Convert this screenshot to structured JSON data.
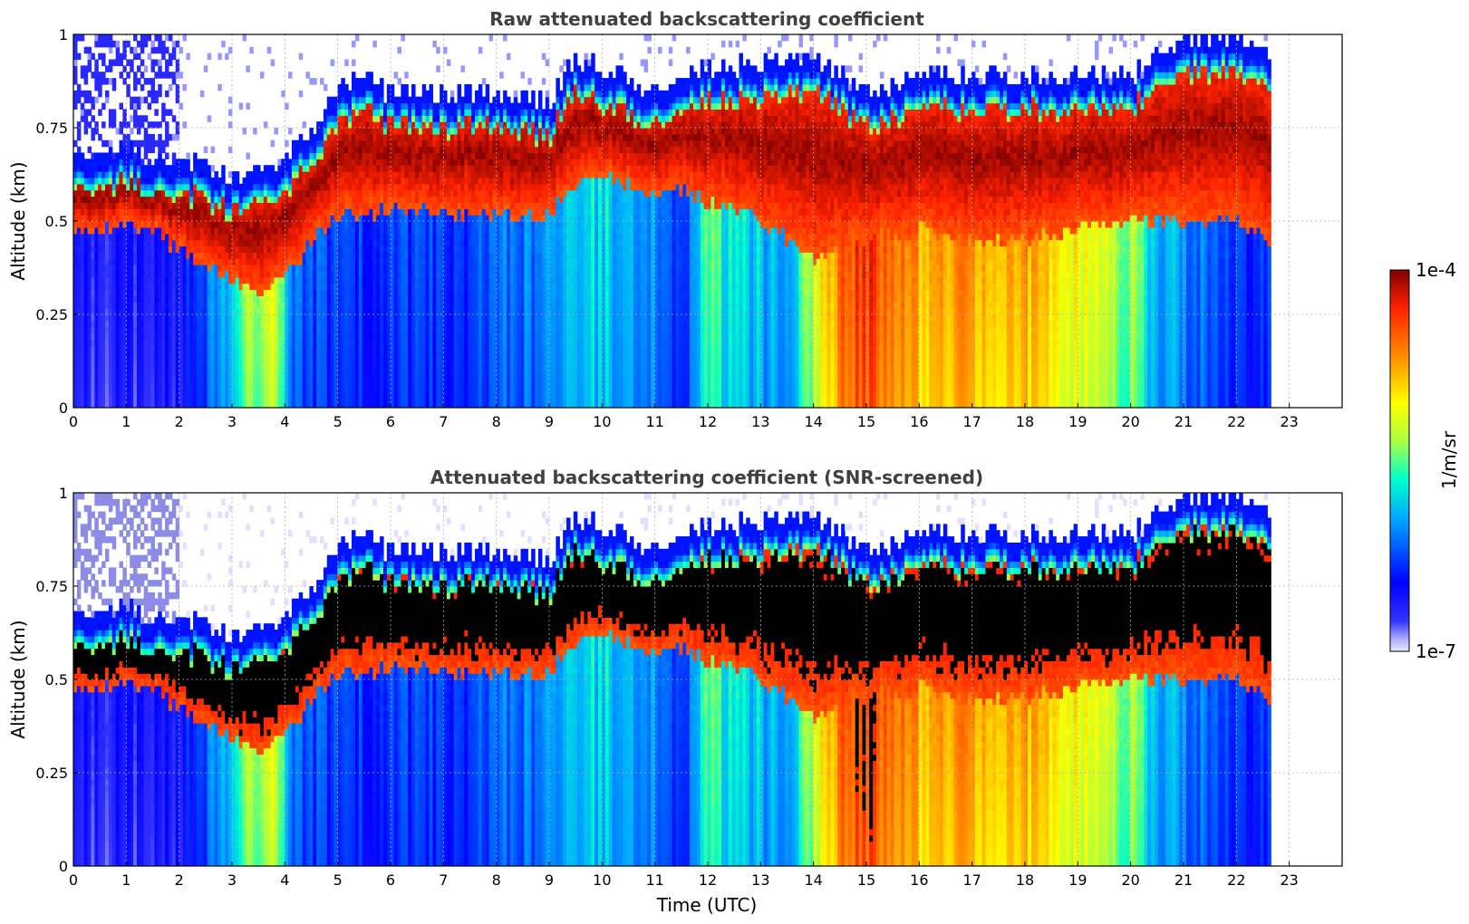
{
  "chart_data": [
    {
      "type": "heatmap",
      "title": "Raw attenuated backscattering coefficient",
      "xlabel": "",
      "ylabel": "Altitude (km)",
      "xlim": [
        0,
        24
      ],
      "ylim": [
        0,
        1
      ],
      "x_ticks": [
        "0",
        "1",
        "2",
        "3",
        "4",
        "5",
        "6",
        "7",
        "8",
        "9",
        "10",
        "11",
        "12",
        "13",
        "14",
        "15",
        "16",
        "17",
        "18",
        "19",
        "20",
        "21",
        "22",
        "23"
      ],
      "y_ticks": [
        "0",
        "0.25",
        "0.5",
        "0.75",
        "1"
      ],
      "grid": true,
      "colormap": "jet",
      "colorbar_range": [
        "1e-7",
        "1e-4"
      ],
      "colorbar_label": "1/m/sr",
      "data_extent_x": [
        0,
        22.65
      ],
      "layer_top_km": [
        [
          0,
          0.63
        ],
        [
          1,
          0.65
        ],
        [
          1.5,
          0.63
        ],
        [
          2,
          0.63
        ],
        [
          2.5,
          0.6
        ],
        [
          3,
          0.57
        ],
        [
          3.5,
          0.58
        ],
        [
          4,
          0.63
        ],
        [
          4.5,
          0.7
        ],
        [
          5,
          0.8
        ],
        [
          5.5,
          0.85
        ],
        [
          6,
          0.8
        ],
        [
          7,
          0.8
        ],
        [
          8,
          0.8
        ],
        [
          9,
          0.78
        ],
        [
          9.5,
          0.9
        ],
        [
          10,
          0.87
        ],
        [
          11,
          0.8
        ],
        [
          11.5,
          0.87
        ],
        [
          12,
          0.87
        ],
        [
          13,
          0.88
        ],
        [
          14,
          0.9
        ],
        [
          15,
          0.8
        ],
        [
          16,
          0.85
        ],
        [
          17,
          0.85
        ],
        [
          18,
          0.85
        ],
        [
          19,
          0.85
        ],
        [
          20,
          0.85
        ],
        [
          21,
          0.95
        ],
        [
          22,
          0.95
        ],
        [
          22.65,
          0.9
        ]
      ],
      "layer_bottom_km": [
        [
          0,
          0.48
        ],
        [
          1,
          0.48
        ],
        [
          1.5,
          0.48
        ],
        [
          2,
          0.42
        ],
        [
          2.5,
          0.38
        ],
        [
          3,
          0.35
        ],
        [
          3.5,
          0.3
        ],
        [
          4,
          0.35
        ],
        [
          4.5,
          0.45
        ],
        [
          5,
          0.52
        ],
        [
          6,
          0.53
        ],
        [
          7,
          0.52
        ],
        [
          8,
          0.52
        ],
        [
          9,
          0.52
        ],
        [
          9.5,
          0.6
        ],
        [
          10,
          0.62
        ],
        [
          11,
          0.58
        ],
        [
          11.5,
          0.58
        ],
        [
          12,
          0.55
        ],
        [
          13,
          0.5
        ],
        [
          14,
          0.4
        ],
        [
          15,
          0.45
        ],
        [
          16,
          0.48
        ],
        [
          17,
          0.45
        ],
        [
          18,
          0.45
        ],
        [
          19,
          0.48
        ],
        [
          20,
          0.5
        ],
        [
          21,
          0.5
        ],
        [
          22,
          0.5
        ],
        [
          22.65,
          0.45
        ]
      ],
      "surface_intensity": [
        [
          0,
          0.1
        ],
        [
          2,
          0.12
        ],
        [
          2.7,
          0.3
        ],
        [
          3.3,
          0.5
        ],
        [
          3.8,
          0.55
        ],
        [
          4.2,
          0.25
        ],
        [
          5,
          0.2
        ],
        [
          7,
          0.2
        ],
        [
          9,
          0.3
        ],
        [
          10,
          0.38
        ],
        [
          11,
          0.3
        ],
        [
          11.5,
          0.2
        ],
        [
          12,
          0.45
        ],
        [
          13,
          0.35
        ],
        [
          13.5,
          0.3
        ],
        [
          14,
          0.55
        ],
        [
          14.5,
          0.78
        ],
        [
          15,
          0.85
        ],
        [
          16,
          0.7
        ],
        [
          17,
          0.72
        ],
        [
          18,
          0.7
        ],
        [
          19,
          0.6
        ],
        [
          20,
          0.5
        ],
        [
          20.5,
          0.35
        ],
        [
          21,
          0.3
        ],
        [
          22,
          0.2
        ],
        [
          22.65,
          0.2
        ]
      ]
    },
    {
      "type": "heatmap",
      "title": "Attenuated backscattering coefficient (SNR-screened)",
      "xlabel": "Time (UTC)",
      "ylabel": "Altitude (km)",
      "xlim": [
        0,
        24
      ],
      "ylim": [
        0,
        1
      ],
      "x_ticks": [
        "0",
        "1",
        "2",
        "3",
        "4",
        "5",
        "6",
        "7",
        "8",
        "9",
        "10",
        "11",
        "12",
        "13",
        "14",
        "15",
        "16",
        "17",
        "18",
        "19",
        "20",
        "21",
        "22",
        "23"
      ],
      "y_ticks": [
        "0",
        "0.25",
        "0.5",
        "0.75",
        "1"
      ],
      "grid": true,
      "colormap": "jet",
      "colorbar_range": [
        "1e-7",
        "1e-4"
      ],
      "colorbar_label": "1/m/sr",
      "data_extent_x": [
        0,
        22.65
      ],
      "screened_values_color": "#000000"
    }
  ],
  "colorbar": {
    "top_label": "1e-4",
    "bottom_label": "1e-7",
    "unit_label": "1/m/sr"
  },
  "colors": {
    "low": "#00007f",
    "mid_low": "#0060ff",
    "mid": "#33ffcc",
    "mid_high": "#ffcc00",
    "high": "#7f0000",
    "screened": "#000000",
    "grid": "#b0b0b0"
  }
}
